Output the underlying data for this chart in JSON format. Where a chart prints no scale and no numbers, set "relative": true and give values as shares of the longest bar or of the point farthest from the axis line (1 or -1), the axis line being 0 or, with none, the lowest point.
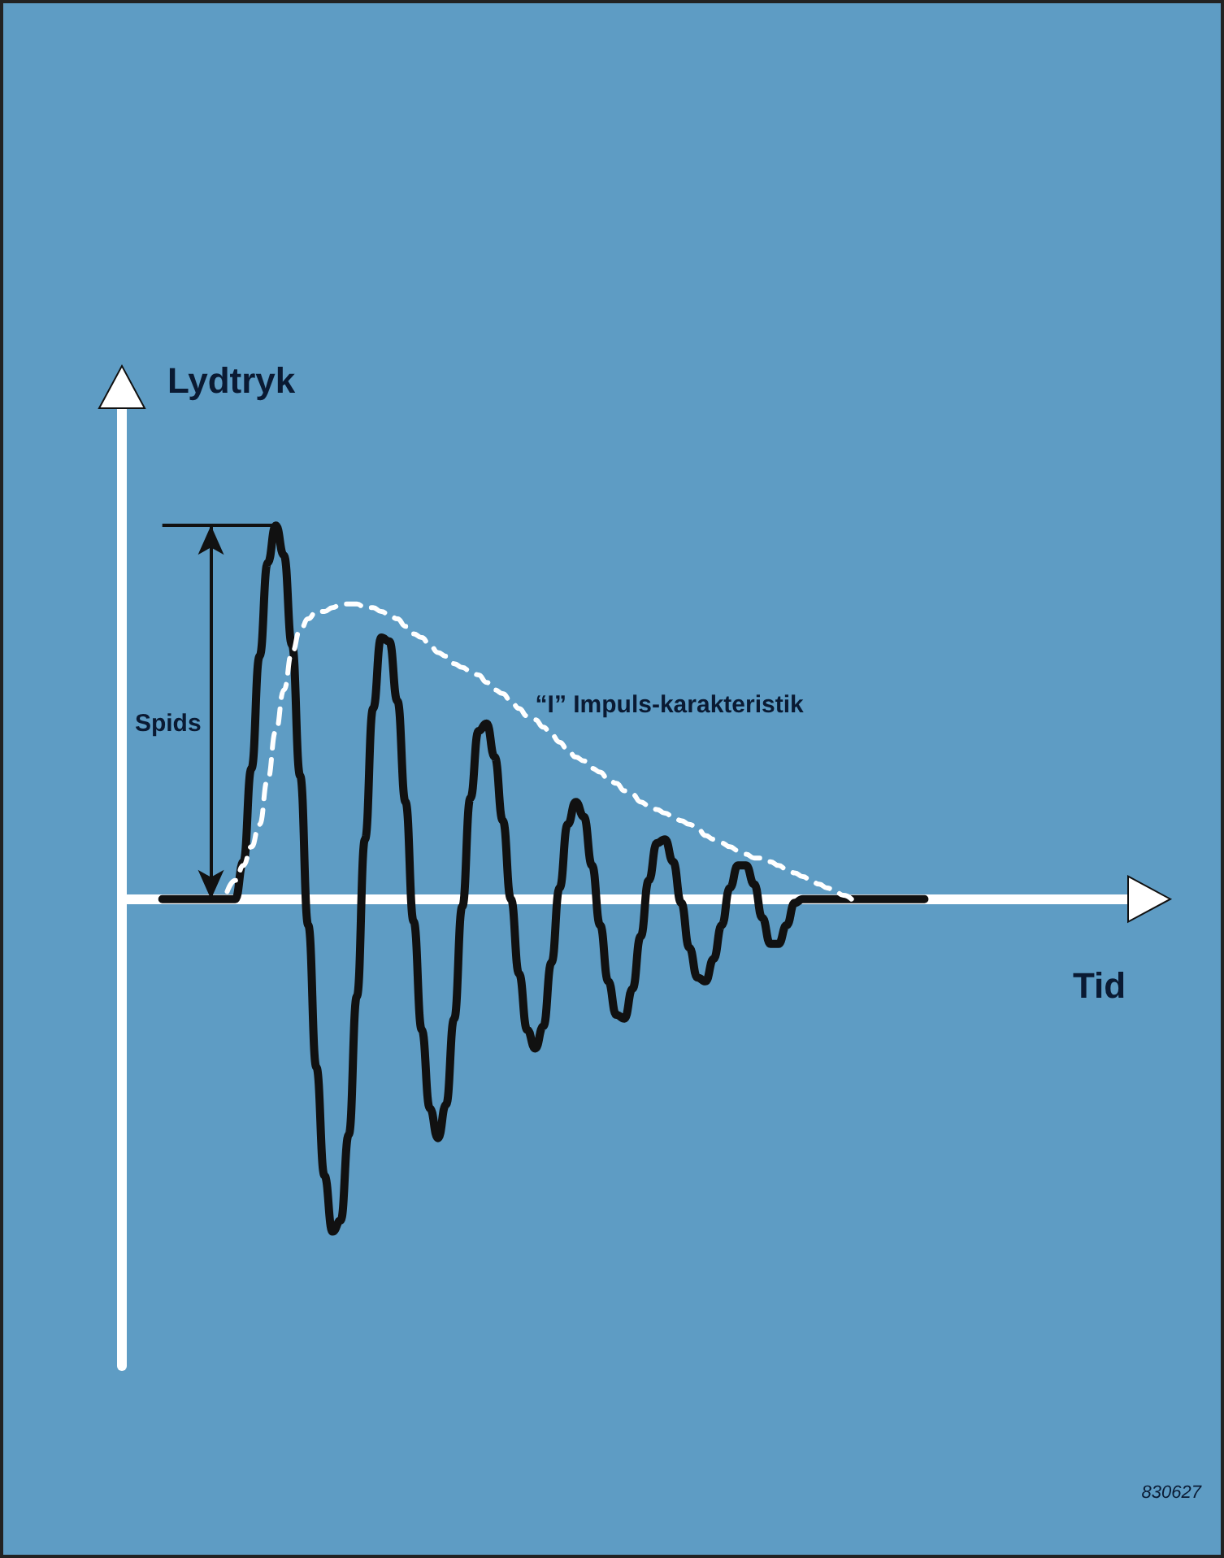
{
  "chart_data": {
    "type": "line",
    "xlabel": "Tid",
    "ylabel": "Lydtryk",
    "relative": true,
    "marker": "none",
    "grid": false,
    "tick_labels": false,
    "categories": [
      null,
      null,
      null,
      null,
      null,
      null,
      null,
      null,
      null,
      null,
      null,
      null,
      null,
      null,
      null,
      null,
      null,
      null,
      null,
      null,
      null,
      null,
      null,
      null,
      null,
      null,
      null,
      null,
      null,
      null,
      null,
      null,
      null,
      null,
      null,
      null,
      null,
      null,
      null,
      null,
      null,
      null,
      null,
      null,
      null,
      null,
      null,
      null,
      null,
      null,
      null,
      null,
      null,
      null,
      null,
      null,
      null,
      null,
      null,
      null,
      null,
      null,
      null,
      null,
      null,
      null,
      null,
      null,
      null,
      null,
      null,
      null,
      null,
      null,
      null,
      null,
      null,
      null,
      null,
      null,
      null,
      null,
      null,
      null,
      null,
      null,
      null,
      null,
      null,
      null,
      null,
      null,
      null,
      null,
      null
    ],
    "series": [
      {
        "color": "#111111",
        "line_style": "solid",
        "values": [
          0,
          0,
          0,
          0,
          0,
          0,
          0,
          0,
          0,
          0,
          0.1,
          0.35,
          0.65,
          0.9,
          1,
          0.92,
          0.68,
          0.33,
          -0.07,
          -0.45,
          -0.74,
          -0.89,
          -0.86,
          -0.63,
          -0.26,
          0.16,
          0.51,
          0.7,
          0.69,
          0.53,
          0.26,
          -0.06,
          -0.35,
          -0.56,
          -0.64,
          -0.55,
          -0.32,
          -0.02,
          0.27,
          0.45,
          0.47,
          0.38,
          0.21,
          0,
          -0.2,
          -0.35,
          -0.4,
          -0.34,
          -0.17,
          0.03,
          0.2,
          0.26,
          0.22,
          0.09,
          -0.07,
          -0.22,
          -0.31,
          -0.32,
          -0.24,
          -0.1,
          0.05,
          0.15,
          0.16,
          0.1,
          -0.01,
          -0.13,
          -0.21,
          -0.22,
          -0.16,
          -0.07,
          0.03,
          0.09,
          0.09,
          0.04,
          -0.05,
          -0.12,
          -0.12,
          -0.07,
          -0.01,
          0,
          0,
          0,
          0,
          0,
          0,
          0,
          0,
          0,
          0,
          0,
          0,
          0,
          0,
          0,
          0
        ]
      },
      {
        "color": "#ffffff",
        "line_style": "dashed",
        "values": [
          null,
          null,
          null,
          null,
          null,
          null,
          null,
          null,
          0.02,
          0.05,
          0.09,
          0.14,
          0.2,
          0.32,
          0.45,
          0.56,
          0.66,
          0.72,
          0.75,
          0.77,
          0.77,
          0.78,
          0.79,
          0.79,
          0.79,
          0.78,
          0.78,
          0.77,
          0.76,
          0.75,
          0.73,
          0.71,
          0.7,
          0.68,
          0.66,
          0.65,
          0.63,
          0.62,
          0.61,
          0.6,
          0.58,
          0.56,
          0.55,
          0.53,
          0.51,
          0.49,
          0.48,
          0.46,
          0.44,
          0.42,
          0.4,
          0.38,
          0.37,
          0.35,
          0.34,
          0.32,
          0.31,
          0.29,
          0.28,
          0.26,
          0.25,
          0.24,
          0.23,
          0.22,
          0.21,
          0.2,
          0.19,
          0.17,
          0.16,
          0.15,
          0.14,
          0.13,
          0.12,
          0.11,
          0.11,
          0.1,
          0.09,
          0.08,
          0.07,
          0.06,
          0.05,
          0.04,
          0.03,
          0.02,
          0.01,
          0,
          null,
          null,
          null,
          null,
          null,
          null,
          null,
          null,
          null
        ]
      }
    ],
    "annotations": [
      "Spids",
      "“I” Impuls-karakteristik",
      "830627"
    ]
  }
}
